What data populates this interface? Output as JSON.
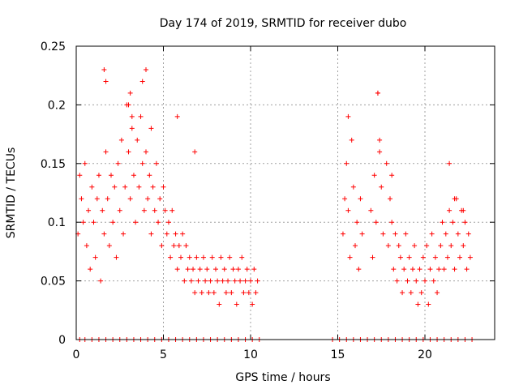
{
  "chart_data": {
    "type": "scatter",
    "title": "Day 174 of 2019, SRMTID for receiver dubo",
    "xlabel": "GPS time / hours",
    "ylabel": "SRMTID / TECUs",
    "xlim": [
      0,
      24
    ],
    "ylim": [
      0,
      0.25
    ],
    "xticks": [
      0,
      5,
      10,
      15,
      20
    ],
    "xtick_labels": [
      "0",
      "5",
      "10",
      "15",
      "20"
    ],
    "yticks": [
      0,
      0.05,
      0.1,
      0.15,
      0.2,
      0.25
    ],
    "ytick_labels": [
      "0",
      "0.05",
      "0.1",
      "0.15",
      "0.2",
      "0.25"
    ],
    "grid": true,
    "marker": "+",
    "series": [
      {
        "name": "SRMTID",
        "color": "#ff0000",
        "x": [
          0.1,
          0.2,
          0.3,
          0.4,
          0.5,
          0.6,
          0.7,
          0.8,
          0.9,
          1.0,
          1.1,
          1.2,
          1.3,
          1.4,
          1.5,
          1.6,
          1.7,
          1.8,
          1.9,
          2.0,
          2.1,
          2.2,
          2.3,
          2.4,
          2.5,
          2.6,
          2.7,
          2.8,
          2.9,
          3.0,
          3.1,
          3.2,
          3.3,
          3.4,
          3.5,
          3.6,
          3.7,
          3.8,
          3.9,
          4.0,
          4.1,
          4.2,
          4.3,
          4.4,
          4.5,
          4.6,
          4.7,
          4.8,
          4.9,
          5.0,
          5.1,
          5.2,
          5.3,
          5.4,
          5.5,
          5.6,
          5.7,
          5.8,
          5.9,
          6.0,
          6.1,
          6.2,
          6.3,
          6.4,
          6.5,
          6.6,
          6.7,
          6.8,
          6.9,
          7.0,
          7.1,
          7.2,
          7.3,
          7.4,
          7.5,
          7.6,
          7.7,
          7.8,
          7.9,
          8.0,
          8.1,
          8.2,
          8.3,
          8.4,
          8.5,
          8.6,
          8.7,
          8.8,
          8.9,
          9.0,
          9.1,
          9.2,
          9.3,
          9.4,
          9.5,
          9.6,
          9.7,
          9.8,
          9.9,
          10.0,
          10.1,
          10.2,
          10.3,
          10.4,
          1.6,
          1.7,
          3.0,
          3.1,
          3.2,
          3.8,
          4.0,
          4.3,
          5.8,
          6.8,
          15.3,
          15.4,
          15.5,
          15.6,
          15.7,
          15.8,
          15.9,
          16.0,
          16.1,
          16.2,
          16.3,
          16.4,
          16.9,
          17.0,
          17.1,
          17.2,
          17.3,
          17.4,
          17.5,
          17.6,
          17.9,
          18.0,
          18.1,
          18.2,
          18.3,
          18.4,
          18.5,
          18.6,
          18.7,
          18.8,
          18.9,
          19.0,
          19.1,
          19.2,
          19.3,
          19.4,
          19.5,
          19.6,
          19.7,
          19.8,
          19.9,
          20.0,
          20.1,
          20.2,
          20.3,
          20.4,
          20.5,
          20.6,
          20.7,
          20.8,
          20.9,
          21.0,
          21.1,
          21.2,
          21.3,
          21.4,
          21.5,
          21.6,
          21.7,
          21.8,
          21.9,
          22.0,
          22.1,
          22.2,
          22.3,
          22.4,
          22.5,
          22.6,
          15.6,
          17.3,
          17.4,
          17.8,
          18.1,
          21.4,
          21.7,
          22.2
        ],
        "y": [
          0.09,
          0.14,
          0.12,
          0.1,
          0.15,
          0.08,
          0.11,
          0.06,
          0.13,
          0.1,
          0.07,
          0.12,
          0.14,
          0.05,
          0.11,
          0.09,
          0.16,
          0.12,
          0.08,
          0.14,
          0.1,
          0.13,
          0.07,
          0.15,
          0.11,
          0.17,
          0.09,
          0.13,
          0.2,
          0.16,
          0.12,
          0.18,
          0.14,
          0.1,
          0.17,
          0.13,
          0.19,
          0.15,
          0.11,
          0.16,
          0.12,
          0.14,
          0.09,
          0.13,
          0.11,
          0.15,
          0.1,
          0.12,
          0.08,
          0.13,
          0.11,
          0.09,
          0.1,
          0.07,
          0.11,
          0.08,
          0.09,
          0.06,
          0.08,
          0.07,
          0.09,
          0.05,
          0.08,
          0.06,
          0.07,
          0.05,
          0.06,
          0.04,
          0.07,
          0.05,
          0.06,
          0.04,
          0.07,
          0.05,
          0.06,
          0.04,
          0.05,
          0.07,
          0.04,
          0.06,
          0.05,
          0.03,
          0.07,
          0.05,
          0.06,
          0.04,
          0.05,
          0.07,
          0.04,
          0.06,
          0.05,
          0.03,
          0.06,
          0.05,
          0.07,
          0.04,
          0.05,
          0.06,
          0.04,
          0.05,
          0.03,
          0.06,
          0.04,
          0.05,
          0.23,
          0.22,
          0.2,
          0.21,
          0.19,
          0.22,
          0.23,
          0.18,
          0.19,
          0.16,
          0.09,
          0.12,
          0.15,
          0.11,
          0.07,
          0.17,
          0.13,
          0.08,
          0.1,
          0.06,
          0.12,
          0.09,
          0.11,
          0.07,
          0.14,
          0.1,
          0.21,
          0.17,
          0.13,
          0.09,
          0.08,
          0.12,
          0.1,
          0.06,
          0.09,
          0.05,
          0.08,
          0.07,
          0.04,
          0.06,
          0.09,
          0.05,
          0.07,
          0.04,
          0.06,
          0.08,
          0.05,
          0.03,
          0.06,
          0.04,
          0.07,
          0.05,
          0.08,
          0.03,
          0.06,
          0.09,
          0.05,
          0.07,
          0.04,
          0.06,
          0.08,
          0.1,
          0.06,
          0.09,
          0.07,
          0.11,
          0.08,
          0.1,
          0.06,
          0.12,
          0.09,
          0.07,
          0.11,
          0.08,
          0.1,
          0.06,
          0.09,
          0.07,
          0.19,
          0.21,
          0.16,
          0.15,
          0.14,
          0.15,
          0.12,
          0.11
        ],
        "zero_x": [
          0.2,
          0.5,
          0.9,
          1.3,
          1.7,
          2.1,
          2.5,
          2.9,
          3.3,
          3.7,
          4.1,
          4.5,
          4.9,
          5.3,
          5.7,
          6.1,
          6.5,
          6.9,
          7.3,
          7.7,
          8.1,
          8.5,
          8.9,
          9.3,
          9.7,
          10.1,
          10.5,
          14.7,
          15.1,
          15.5,
          15.9,
          16.3,
          16.7,
          17.1,
          17.5,
          17.9,
          18.3,
          18.7,
          19.1,
          19.5,
          19.9,
          20.3,
          20.7,
          21.1,
          21.5,
          21.9,
          22.3,
          22.7
        ],
        "zero_y": 0
      }
    ]
  }
}
